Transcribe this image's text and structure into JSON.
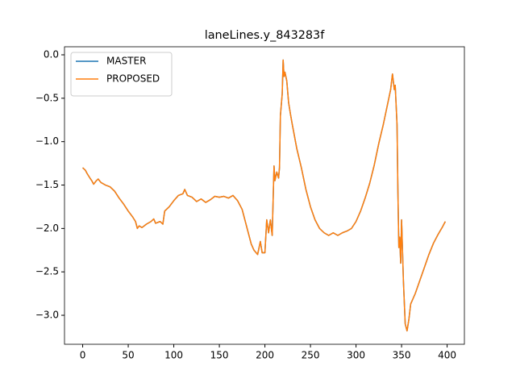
{
  "chart_data": {
    "type": "line",
    "title": "laneLines.y_843283f",
    "x": [
      0,
      3,
      5,
      8,
      10,
      12,
      15,
      17,
      20,
      25,
      30,
      35,
      40,
      45,
      50,
      55,
      58,
      60,
      62,
      65,
      70,
      75,
      78,
      80,
      85,
      88,
      90,
      95,
      100,
      105,
      110,
      112,
      115,
      120,
      125,
      130,
      135,
      140,
      145,
      150,
      155,
      160,
      165,
      170,
      175,
      180,
      185,
      188,
      192,
      195,
      197,
      200,
      202,
      204,
      206,
      208,
      210,
      211,
      213,
      215,
      216,
      217,
      219,
      220,
      221,
      222,
      224,
      226,
      228,
      230,
      235,
      240,
      245,
      250,
      255,
      260,
      265,
      270,
      275,
      280,
      285,
      290,
      295,
      300,
      305,
      310,
      315,
      320,
      325,
      330,
      335,
      338,
      340,
      342,
      343,
      345,
      346,
      347,
      348,
      349,
      350,
      352,
      354,
      356,
      358,
      360,
      365,
      370,
      375,
      380,
      385,
      390,
      395,
      398
    ],
    "series": [
      {
        "name": "MASTER",
        "color": "#1f77b4",
        "values": [
          -1.3,
          -1.33,
          -1.37,
          -1.42,
          -1.45,
          -1.49,
          -1.45,
          -1.43,
          -1.47,
          -1.5,
          -1.52,
          -1.57,
          -1.65,
          -1.72,
          -1.8,
          -1.87,
          -1.92,
          -2.0,
          -1.97,
          -1.99,
          -1.95,
          -1.92,
          -1.89,
          -1.94,
          -1.92,
          -1.95,
          -1.8,
          -1.75,
          -1.68,
          -1.62,
          -1.6,
          -1.55,
          -1.62,
          -1.64,
          -1.69,
          -1.66,
          -1.7,
          -1.67,
          -1.63,
          -1.64,
          -1.63,
          -1.65,
          -1.62,
          -1.68,
          -1.78,
          -1.98,
          -2.18,
          -2.25,
          -2.3,
          -2.15,
          -2.28,
          -2.28,
          -1.9,
          -2.05,
          -1.9,
          -2.08,
          -1.28,
          -1.45,
          -1.35,
          -1.42,
          -1.3,
          -0.7,
          -0.45,
          -0.06,
          -0.25,
          -0.2,
          -0.3,
          -0.55,
          -0.68,
          -0.8,
          -1.08,
          -1.3,
          -1.55,
          -1.75,
          -1.9,
          -2.0,
          -2.05,
          -2.08,
          -2.05,
          -2.08,
          -2.05,
          -2.03,
          -2.0,
          -1.92,
          -1.8,
          -1.65,
          -1.48,
          -1.27,
          -1.02,
          -0.8,
          -0.55,
          -0.4,
          -0.22,
          -0.4,
          -0.35,
          -0.8,
          -1.6,
          -2.22,
          -2.1,
          -2.4,
          -1.9,
          -2.6,
          -3.1,
          -3.18,
          -3.05,
          -2.87,
          -2.75,
          -2.6,
          -2.45,
          -2.3,
          -2.17,
          -2.07,
          -1.98,
          -1.92
        ]
      },
      {
        "name": "PROPOSED",
        "color": "#ff7f0e",
        "values": [
          -1.3,
          -1.33,
          -1.37,
          -1.42,
          -1.45,
          -1.49,
          -1.45,
          -1.43,
          -1.47,
          -1.5,
          -1.52,
          -1.57,
          -1.65,
          -1.72,
          -1.8,
          -1.87,
          -1.92,
          -2.0,
          -1.97,
          -1.99,
          -1.95,
          -1.92,
          -1.89,
          -1.94,
          -1.92,
          -1.95,
          -1.8,
          -1.75,
          -1.68,
          -1.62,
          -1.6,
          -1.55,
          -1.62,
          -1.64,
          -1.69,
          -1.66,
          -1.7,
          -1.67,
          -1.63,
          -1.64,
          -1.63,
          -1.65,
          -1.62,
          -1.68,
          -1.78,
          -1.98,
          -2.18,
          -2.25,
          -2.3,
          -2.15,
          -2.28,
          -2.28,
          -1.9,
          -2.05,
          -1.9,
          -2.08,
          -1.28,
          -1.45,
          -1.35,
          -1.42,
          -1.3,
          -0.7,
          -0.45,
          -0.06,
          -0.25,
          -0.2,
          -0.3,
          -0.55,
          -0.68,
          -0.8,
          -1.08,
          -1.3,
          -1.55,
          -1.75,
          -1.9,
          -2.0,
          -2.05,
          -2.08,
          -2.05,
          -2.08,
          -2.05,
          -2.03,
          -2.0,
          -1.92,
          -1.8,
          -1.65,
          -1.48,
          -1.27,
          -1.02,
          -0.8,
          -0.55,
          -0.4,
          -0.22,
          -0.4,
          -0.35,
          -0.8,
          -1.6,
          -2.22,
          -2.1,
          -2.4,
          -1.9,
          -2.6,
          -3.1,
          -3.18,
          -3.05,
          -2.87,
          -2.75,
          -2.6,
          -2.45,
          -2.3,
          -2.17,
          -2.07,
          -1.98,
          -1.92
        ]
      }
    ],
    "xlim": [
      -19.95,
      418.95
    ],
    "xticks": [
      0,
      50,
      100,
      150,
      200,
      250,
      300,
      350,
      400
    ],
    "ylim": [
      -3.334,
      0.093
    ],
    "yticks": [
      {
        "value": 0,
        "label": "0.0"
      },
      {
        "value": -0.5,
        "label": "−0.5"
      },
      {
        "value": -1,
        "label": "−1.0"
      },
      {
        "value": -1.5,
        "label": "−1.5"
      },
      {
        "value": -2,
        "label": "−2.0"
      },
      {
        "value": -2.5,
        "label": "−2.5"
      },
      {
        "value": -3,
        "label": "−3.0"
      }
    ],
    "legend": "upper left"
  }
}
